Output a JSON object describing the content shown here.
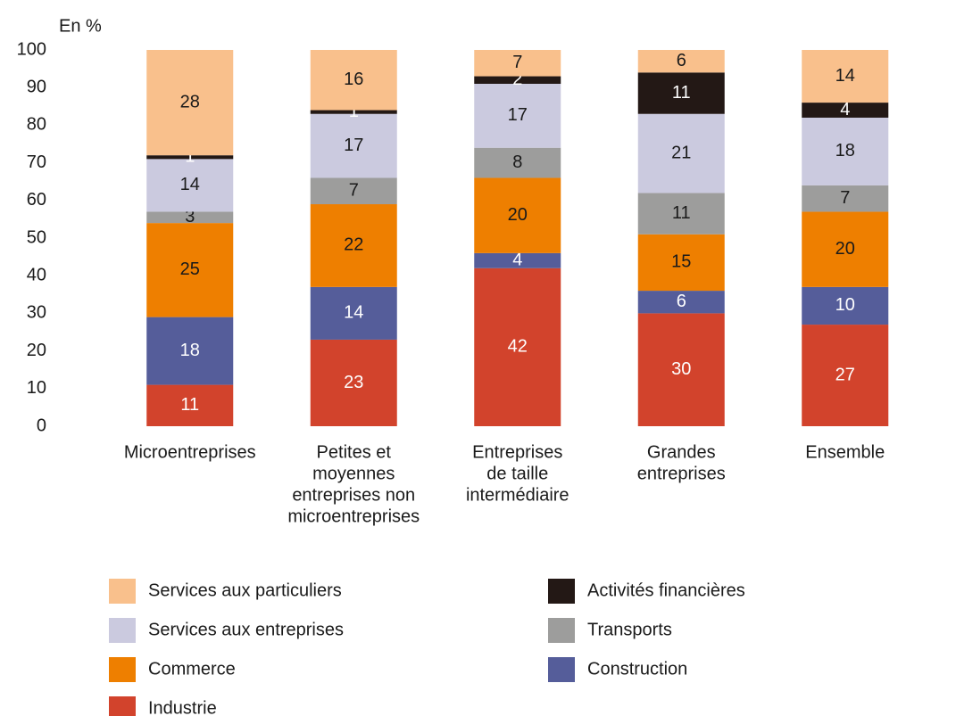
{
  "chart_data": {
    "type": "stacked_bar",
    "y_label": "En %",
    "categories": [
      [
        "Microentreprises"
      ],
      [
        "Petites et",
        "moyennes",
        "entreprises non",
        "microentreprises"
      ],
      [
        "Entreprises",
        "de taille",
        "intermédiaire"
      ],
      [
        "Grandes",
        "entreprises"
      ],
      [
        "Ensemble"
      ]
    ],
    "series": [
      {
        "name": "Industrie",
        "color": "#d2432c",
        "label_color": "#ffffff",
        "values": [
          11,
          23,
          42,
          30,
          27
        ]
      },
      {
        "name": "Construction",
        "color": "#555d9a",
        "label_color": "#ffffff",
        "values": [
          18,
          14,
          4,
          6,
          10
        ]
      },
      {
        "name": "Commerce",
        "color": "#ee7f00",
        "label_color": "#1a1a1a",
        "values": [
          25,
          22,
          20,
          15,
          20
        ]
      },
      {
        "name": "Transports",
        "color": "#9d9d9c",
        "label_color": "#1a1a1a",
        "values": [
          3,
          7,
          8,
          11,
          7
        ]
      },
      {
        "name": "Services aux entreprises",
        "color": "#cbcadf",
        "label_color": "#1a1a1a",
        "values": [
          14,
          17,
          17,
          21,
          18
        ]
      },
      {
        "name": "Activités financières",
        "color": "#231815",
        "label_color": "#ffffff",
        "values": [
          1,
          1,
          2,
          11,
          4
        ]
      },
      {
        "name": "Services aux particuliers",
        "color": "#f9c08c",
        "label_color": "#1a1a1a",
        "values": [
          28,
          16,
          7,
          6,
          14
        ]
      }
    ],
    "ylim": [
      0,
      100
    ],
    "yticks": [
      0,
      10,
      20,
      30,
      40,
      50,
      60,
      70,
      80,
      90,
      100
    ],
    "grid": false
  }
}
